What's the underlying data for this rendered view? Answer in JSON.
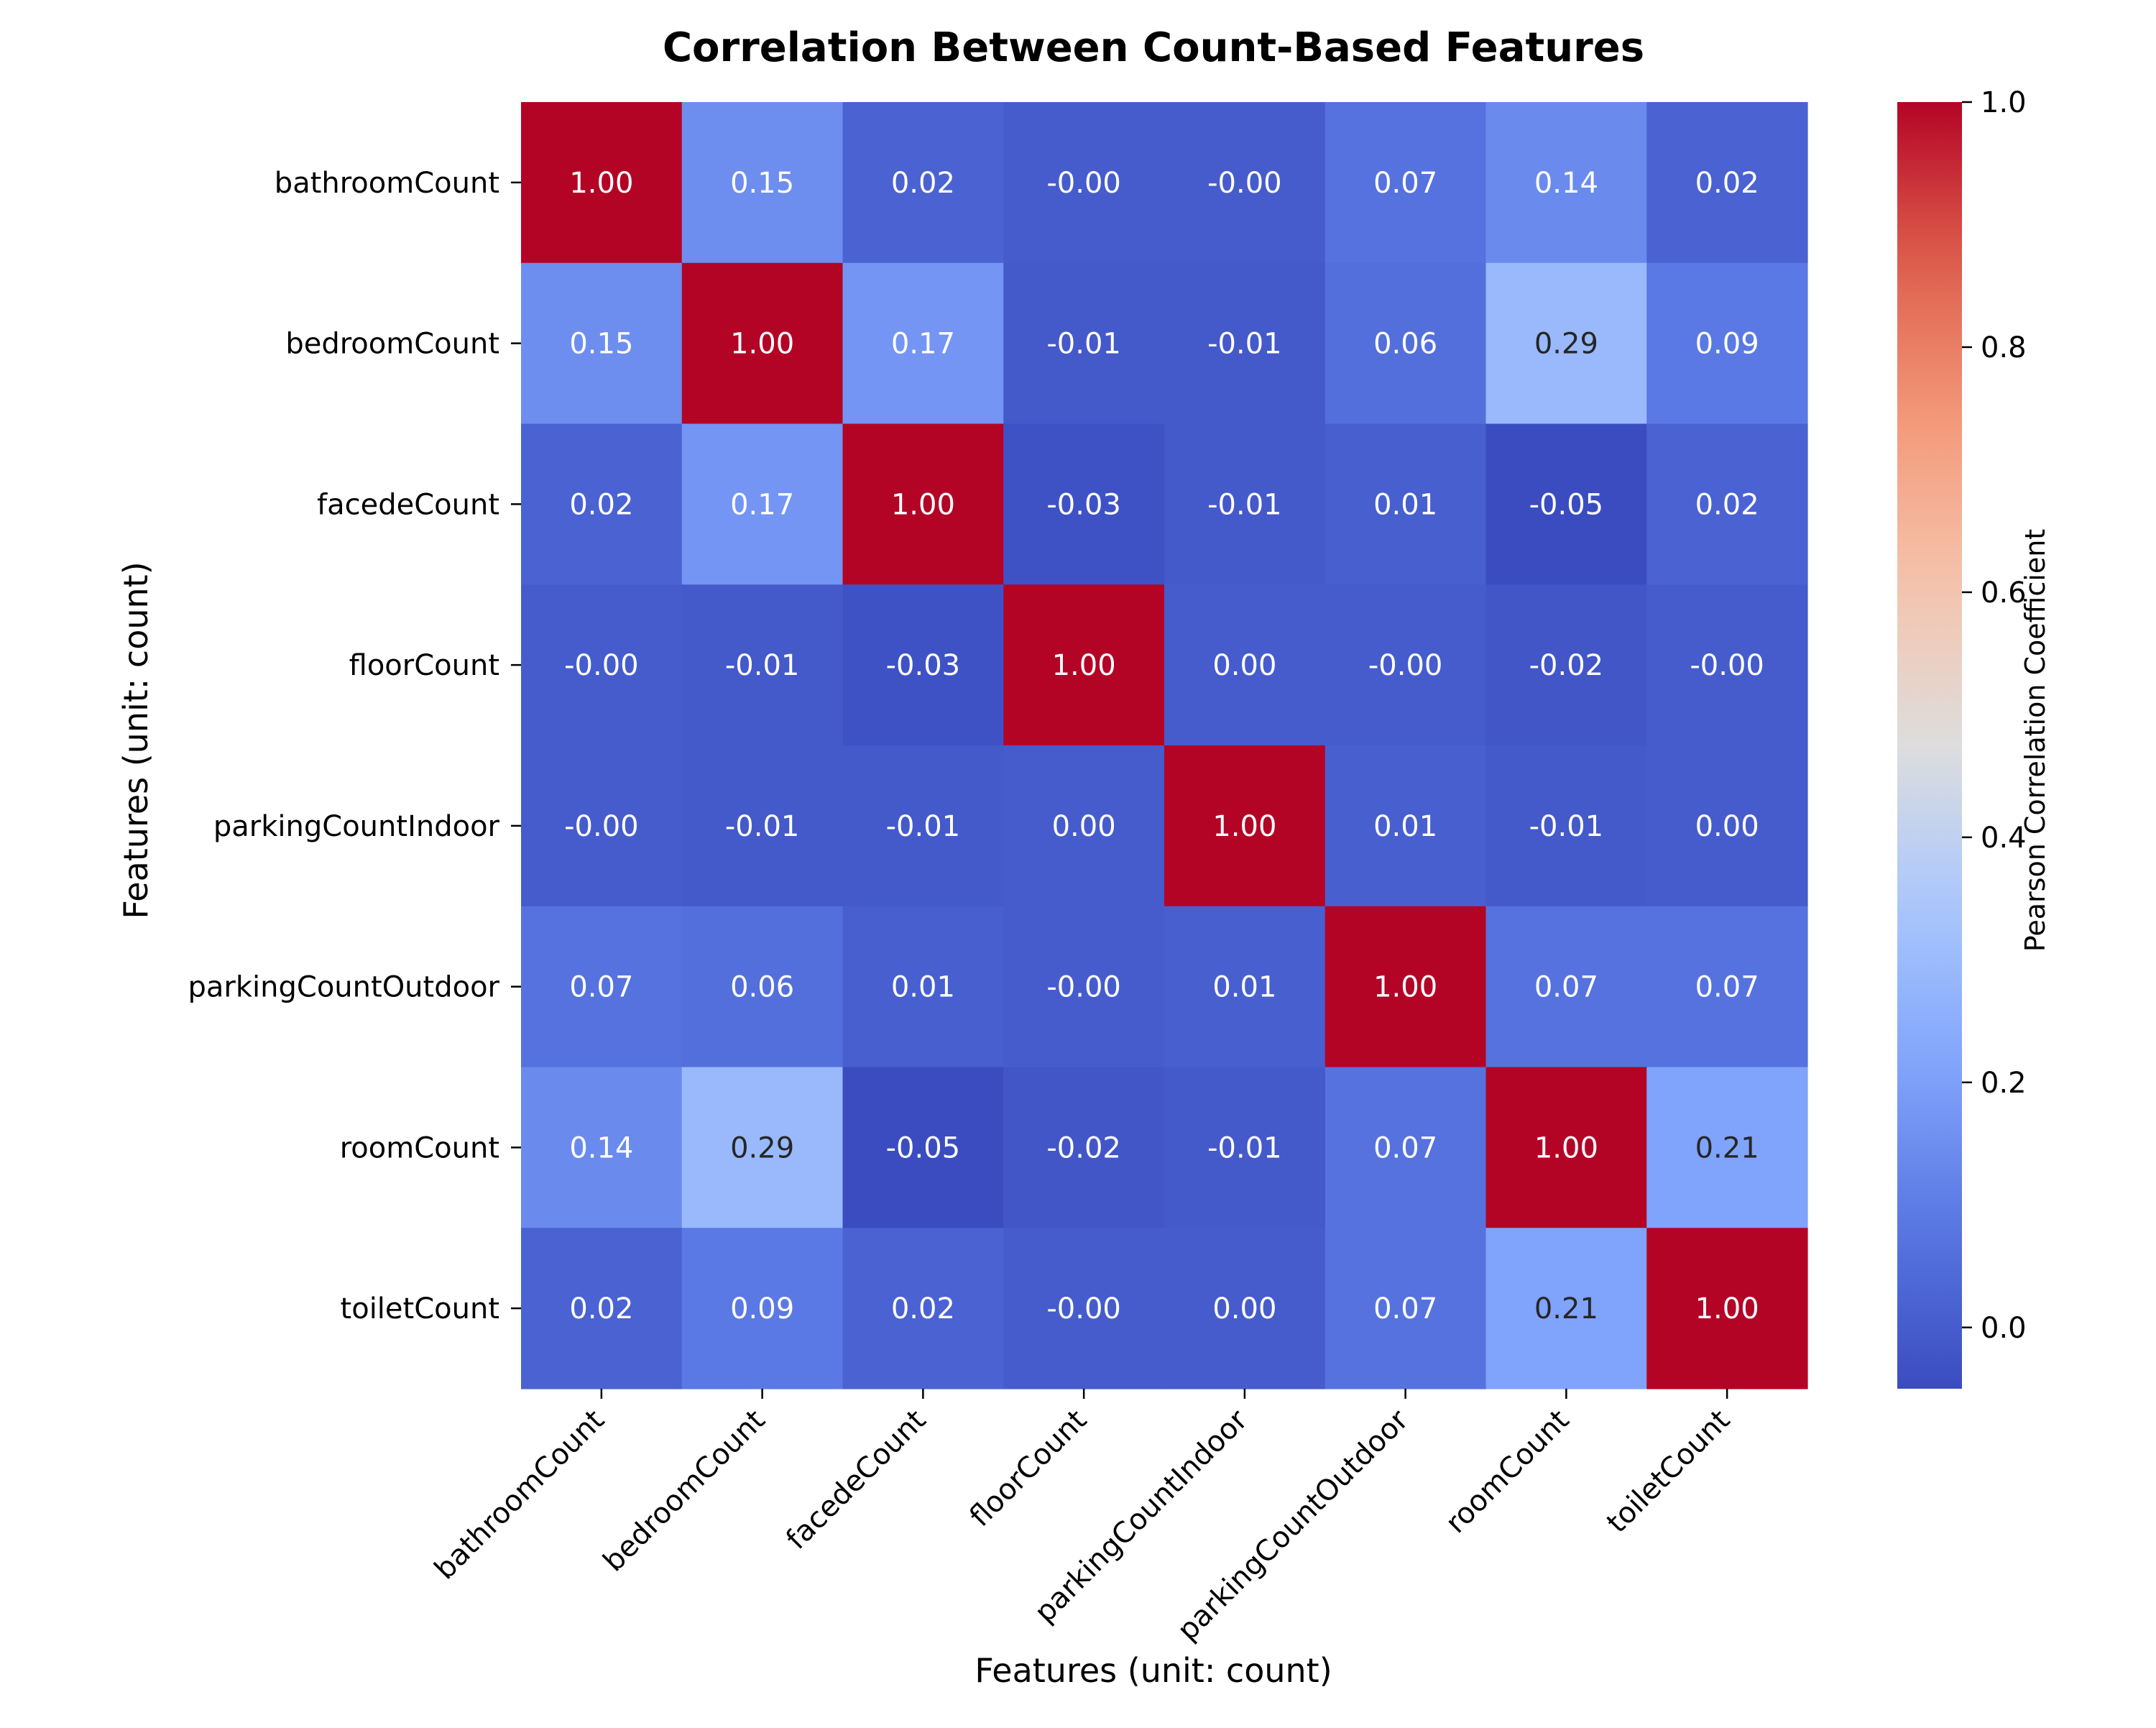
{
  "chart_data": {
    "type": "heatmap",
    "title": "Correlation Between Count-Based Features",
    "xlabel": "Features (unit: count)",
    "ylabel": "Features (unit: count)",
    "x_categories": [
      "bathroomCount",
      "bedroomCount",
      "facedeCount",
      "floorCount",
      "parkingCountIndoor",
      "parkingCountOutdoor",
      "roomCount",
      "toiletCount"
    ],
    "y_categories": [
      "bathroomCount",
      "bedroomCount",
      "facedeCount",
      "floorCount",
      "parkingCountIndoor",
      "parkingCountOutdoor",
      "roomCount",
      "toiletCount"
    ],
    "values": [
      [
        1.0,
        0.15,
        0.02,
        -0.0,
        -0.0,
        0.07,
        0.14,
        0.02
      ],
      [
        0.15,
        1.0,
        0.17,
        -0.01,
        -0.01,
        0.06,
        0.29,
        0.09
      ],
      [
        0.02,
        0.17,
        1.0,
        -0.03,
        -0.01,
        0.01,
        -0.05,
        0.02
      ],
      [
        -0.0,
        -0.01,
        -0.03,
        1.0,
        0.0,
        -0.0,
        -0.02,
        -0.0
      ],
      [
        -0.0,
        -0.01,
        -0.01,
        0.0,
        1.0,
        0.01,
        -0.01,
        0.0
      ],
      [
        0.07,
        0.06,
        0.01,
        -0.0,
        0.01,
        1.0,
        0.07,
        0.07
      ],
      [
        0.14,
        0.29,
        -0.05,
        -0.02,
        -0.01,
        0.07,
        1.0,
        0.21
      ],
      [
        0.02,
        0.09,
        0.02,
        -0.0,
        0.0,
        0.07,
        0.21,
        1.0
      ]
    ],
    "annotations": [
      [
        "1.00",
        "0.15",
        "0.02",
        "-0.00",
        "-0.00",
        "0.07",
        "0.14",
        "0.02"
      ],
      [
        "0.15",
        "1.00",
        "0.17",
        "-0.01",
        "-0.01",
        "0.06",
        "0.29",
        "0.09"
      ],
      [
        "0.02",
        "0.17",
        "1.00",
        "-0.03",
        "-0.01",
        "0.01",
        "-0.05",
        "0.02"
      ],
      [
        "-0.00",
        "-0.01",
        "-0.03",
        "1.00",
        "0.00",
        "-0.00",
        "-0.02",
        "-0.00"
      ],
      [
        "-0.00",
        "-0.01",
        "-0.01",
        "0.00",
        "1.00",
        "0.01",
        "-0.01",
        "0.00"
      ],
      [
        "0.07",
        "0.06",
        "0.01",
        "-0.00",
        "0.01",
        "1.00",
        "0.07",
        "0.07"
      ],
      [
        "0.14",
        "0.29",
        "-0.05",
        "-0.02",
        "-0.01",
        "0.07",
        "1.00",
        "0.21"
      ],
      [
        "0.02",
        "0.09",
        "0.02",
        "-0.00",
        "0.00",
        "0.07",
        "0.21",
        "1.00"
      ]
    ],
    "colormap": "coolwarm",
    "colorbar": {
      "label": "Pearson Correlation Coefficient",
      "range": [
        -0.05,
        1.0
      ],
      "ticks": [
        0.0,
        0.2,
        0.4,
        0.6,
        0.8,
        1.0
      ],
      "tick_labels": [
        "0.0",
        "0.2",
        "0.4",
        "0.6",
        "0.8",
        "1.0"
      ]
    },
    "grid": false
  }
}
